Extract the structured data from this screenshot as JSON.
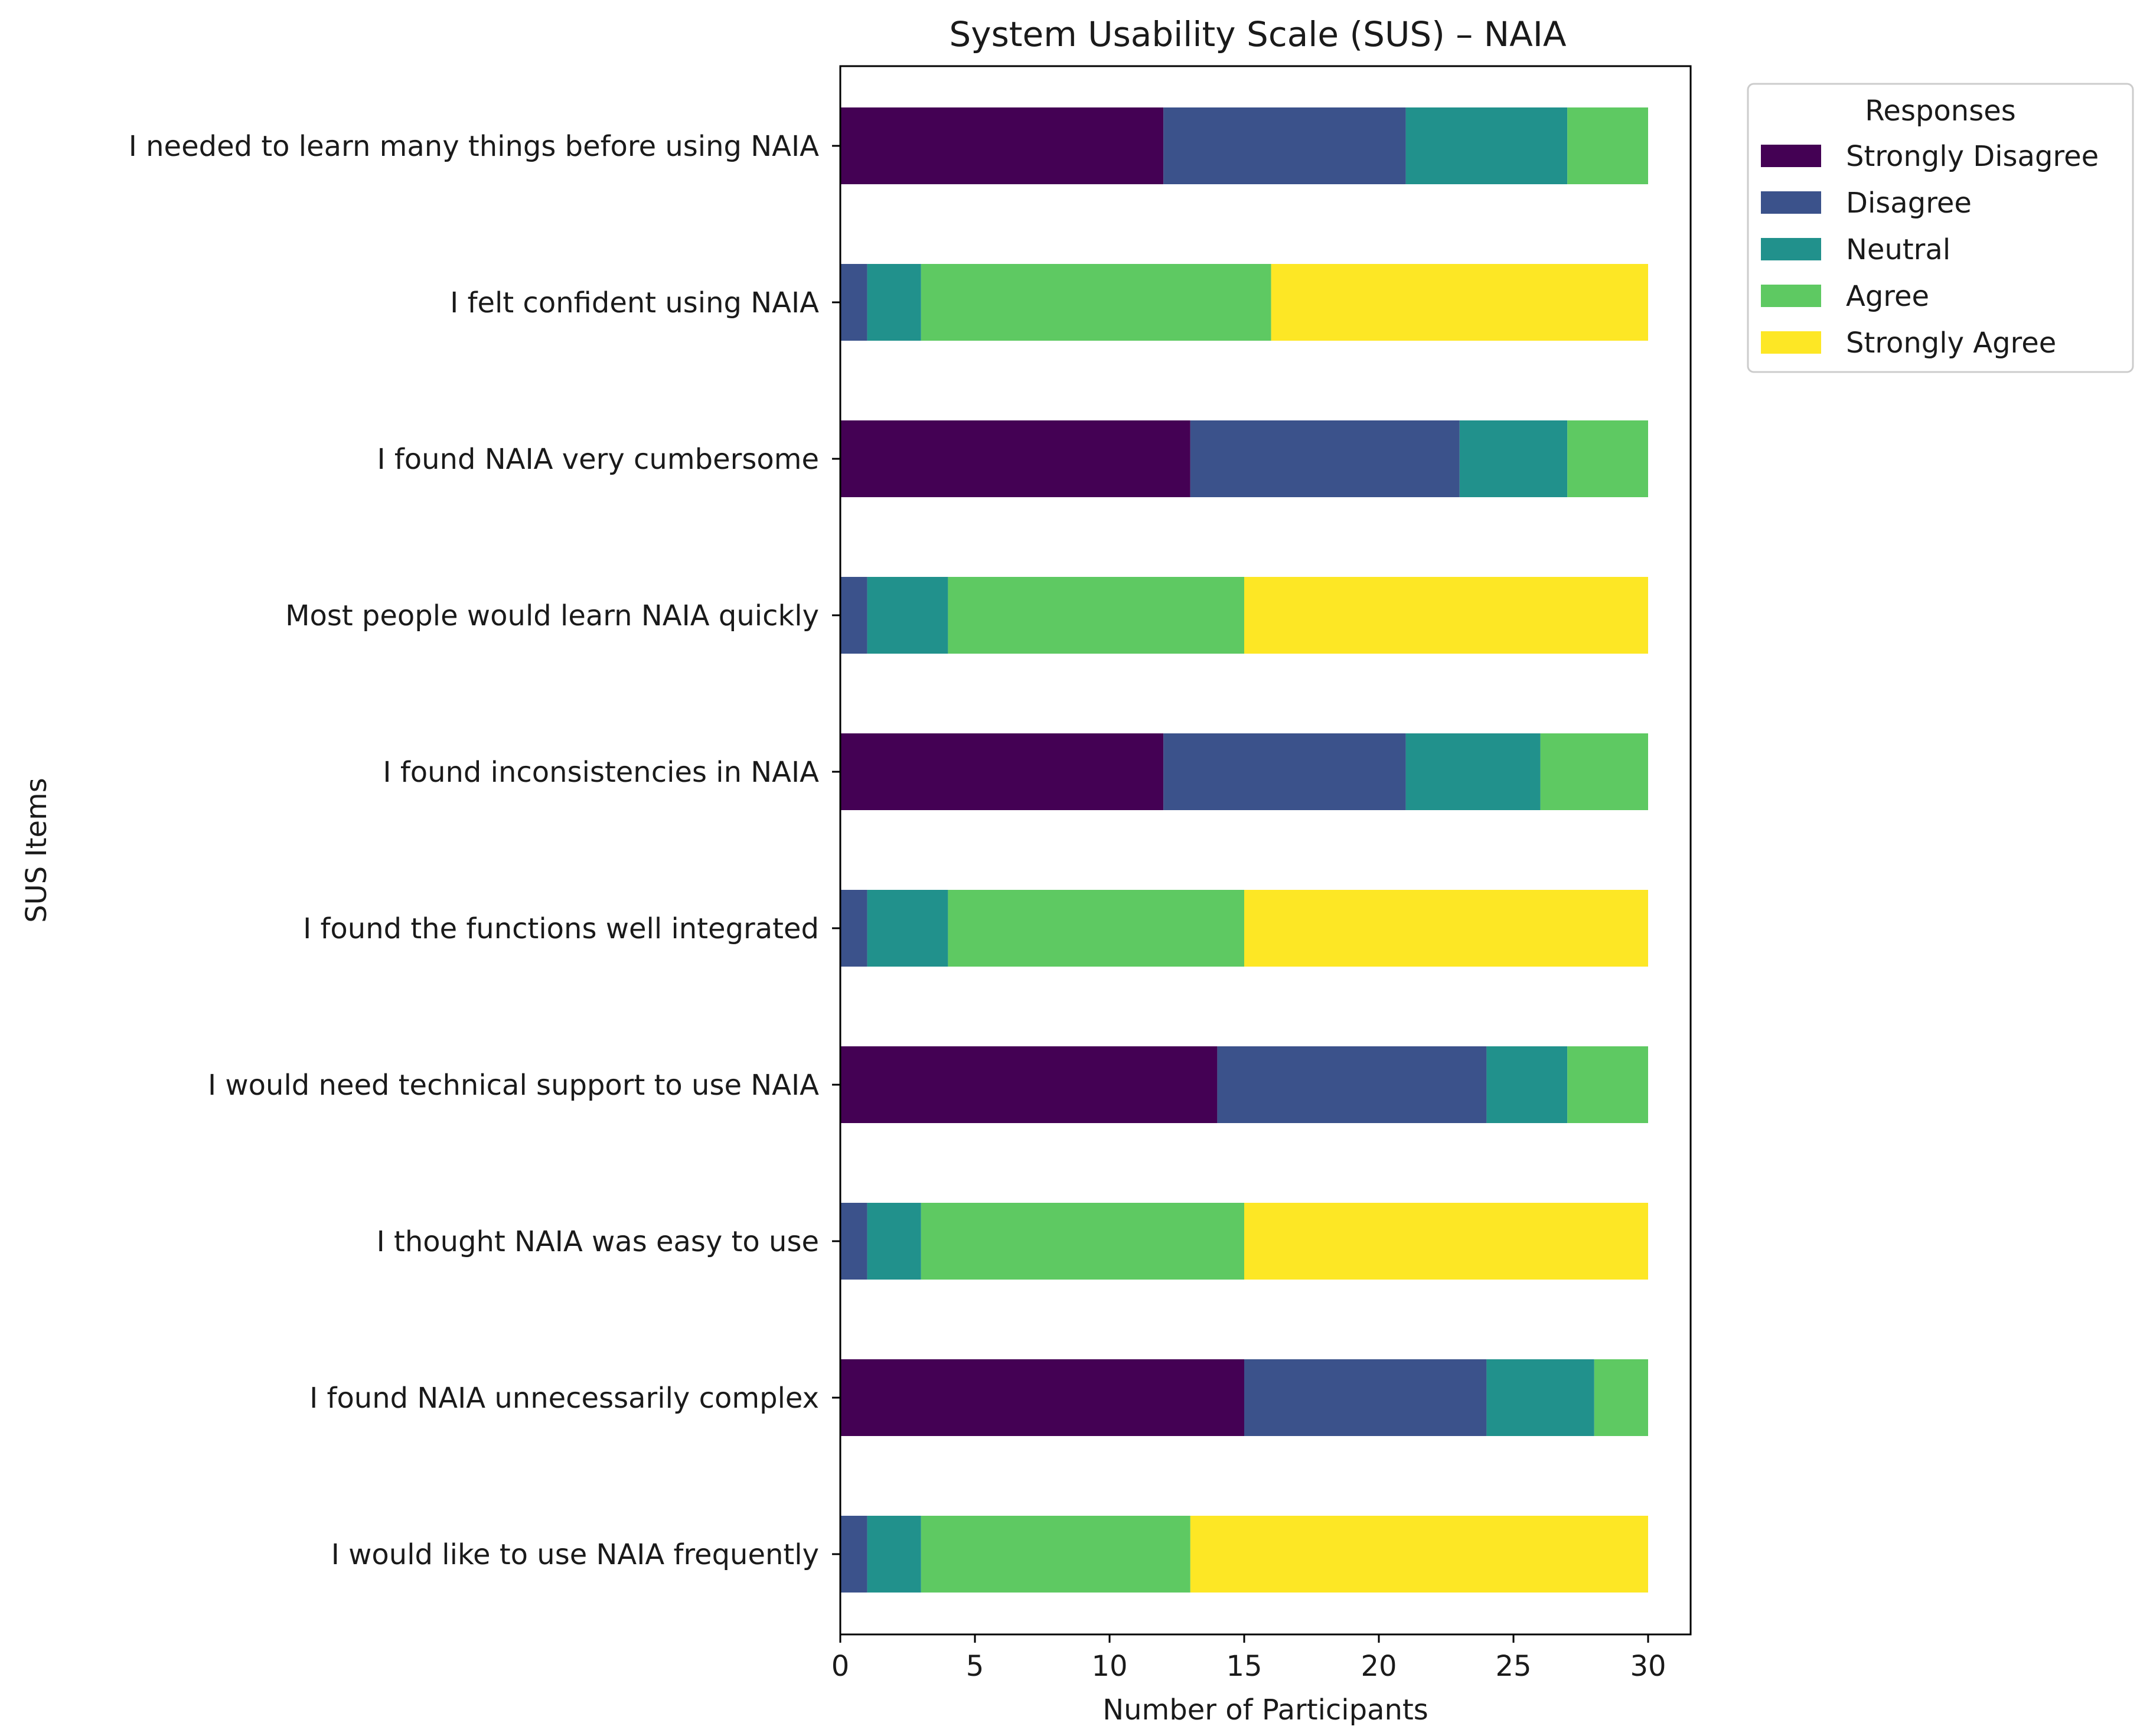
{
  "chart_data": {
    "type": "bar",
    "orientation": "horizontal",
    "stacked": true,
    "title": "System Usability Scale (SUS) – NAIA",
    "xlabel": "Number of Participants",
    "ylabel": "SUS Items",
    "xlim": [
      0,
      31.5
    ],
    "xticks": [
      0,
      5,
      10,
      15,
      20,
      25,
      30
    ],
    "grid": false,
    "legend": {
      "title": "Responses",
      "position": "outside-top-right"
    },
    "categories": [
      "I needed to learn many things before using NAIA",
      "I felt confident using NAIA",
      "I found NAIA very cumbersome",
      "Most people would learn NAIA quickly",
      "I found inconsistencies in NAIA",
      "I found the functions well integrated",
      "I would need technical support to use NAIA",
      "I thought NAIA was easy to use",
      "I found NAIA unnecessarily complex",
      "I would like to use NAIA frequently"
    ],
    "series": [
      {
        "name": "Strongly Disagree",
        "color": "#440154",
        "values": [
          12,
          0,
          13,
          0,
          12,
          0,
          14,
          0,
          15,
          0
        ]
      },
      {
        "name": "Disagree",
        "color": "#3b528b",
        "values": [
          9,
          1,
          10,
          1,
          9,
          1,
          10,
          1,
          9,
          1
        ]
      },
      {
        "name": "Neutral",
        "color": "#21918c",
        "values": [
          6,
          2,
          4,
          3,
          5,
          3,
          3,
          2,
          4,
          2
        ]
      },
      {
        "name": "Agree",
        "color": "#5ec962",
        "values": [
          3,
          13,
          3,
          11,
          4,
          11,
          3,
          12,
          2,
          10
        ]
      },
      {
        "name": "Strongly Agree",
        "color": "#fde725",
        "values": [
          0,
          14,
          0,
          15,
          0,
          15,
          0,
          15,
          0,
          17
        ]
      }
    ]
  }
}
